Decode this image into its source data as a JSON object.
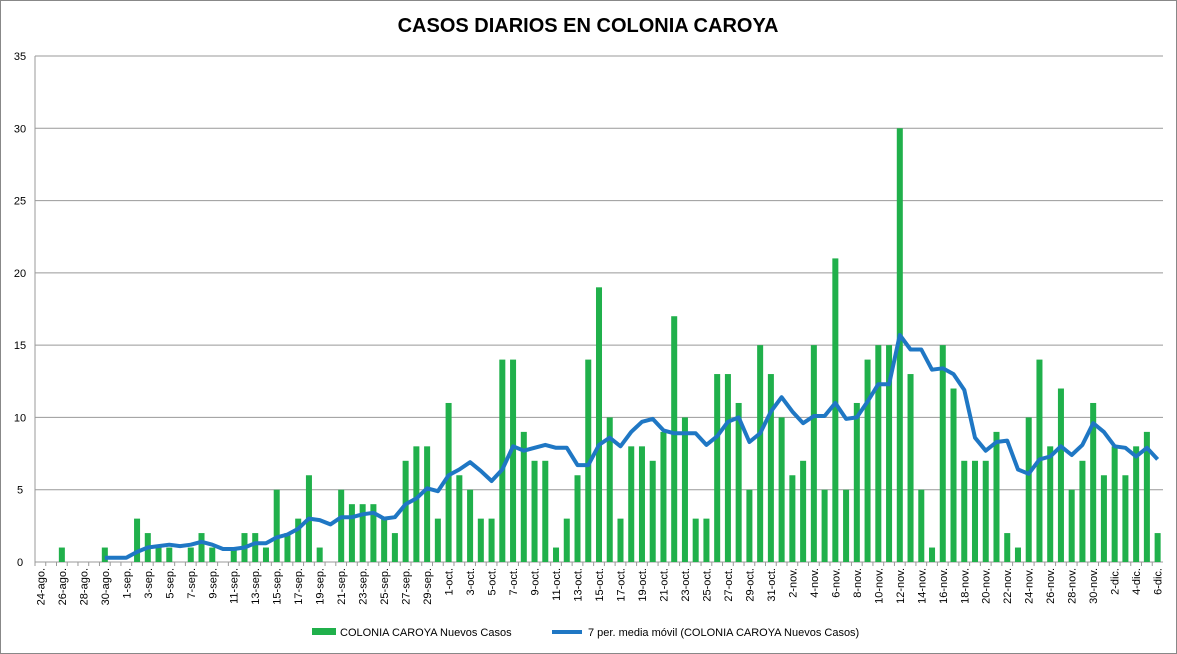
{
  "chart_data": {
    "type": "bar_line",
    "title": "CASOS DIARIOS EN COLONIA CAROYA",
    "categories": [
      "24-ago.",
      null,
      "26-ago.",
      null,
      "28-ago.",
      null,
      "30-ago.",
      null,
      "1-sep.",
      null,
      "3-sep.",
      null,
      "5-sep.",
      null,
      "7-sep.",
      null,
      "9-sep.",
      null,
      "11-sep.",
      null,
      "13-sep.",
      null,
      "15-sep.",
      null,
      "17-sep.",
      null,
      "19-sep.",
      null,
      "21-sep.",
      null,
      "23-sep.",
      null,
      "25-sep.",
      null,
      "27-sep.",
      null,
      "29-sep.",
      null,
      "1-oct.",
      null,
      "3-oct.",
      null,
      "5-oct.",
      null,
      "7-oct.",
      null,
      "9-oct.",
      null,
      "11-oct.",
      null,
      "13-oct.",
      null,
      "15-oct.",
      null,
      "17-oct.",
      null,
      "19-oct.",
      null,
      "21-oct.",
      null,
      "23-oct.",
      null,
      "25-oct.",
      null,
      "27-oct.",
      null,
      "29-oct.",
      null,
      "31-oct.",
      null,
      "2-nov.",
      null,
      "4-nov.",
      null,
      "6-nov.",
      null,
      "8-nov.",
      null,
      "10-nov.",
      null,
      "12-nov.",
      null,
      "14-nov.",
      null,
      "16-nov.",
      null,
      "18-nov.",
      null,
      "20-nov.",
      null,
      "22-nov.",
      null,
      "24-nov.",
      null,
      "26-nov.",
      null,
      "28-nov.",
      null,
      "30-nov.",
      null,
      "2-dic.",
      null,
      "4-dic.",
      null,
      "6-dic."
    ],
    "series": [
      {
        "name": "COLONIA CAROYA Nuevos Casos",
        "type": "bar",
        "color": "#20b04b",
        "values": [
          0,
          0,
          1,
          0,
          0,
          0,
          1,
          0,
          0,
          3,
          2,
          1,
          1,
          0,
          1,
          2,
          1,
          0,
          1,
          2,
          2,
          1,
          5,
          2,
          3,
          6,
          1,
          0,
          5,
          4,
          4,
          4,
          3,
          2,
          7,
          8,
          8,
          3,
          11,
          6,
          5,
          3,
          3,
          14,
          14,
          9,
          7,
          7,
          1,
          3,
          6,
          14,
          19,
          10,
          3,
          8,
          8,
          7,
          9,
          17,
          10,
          3,
          3,
          13,
          13,
          11,
          5,
          15,
          13,
          10,
          6,
          7,
          15,
          5,
          21,
          5,
          11,
          14,
          15,
          15,
          30,
          13,
          5,
          1,
          15,
          12,
          7,
          7,
          7,
          9,
          2,
          1,
          10,
          14,
          8,
          12,
          5,
          7,
          11,
          6,
          8,
          6,
          8,
          9,
          2
        ]
      },
      {
        "name": "7 per. media móvil (COLONIA CAROYA Nuevos Casos)",
        "type": "line",
        "color": "#1f77c4",
        "values": [
          null,
          null,
          null,
          null,
          null,
          null,
          0.3,
          0.3,
          0.3,
          0.7,
          1.0,
          1.1,
          1.2,
          1.1,
          1.2,
          1.4,
          1.2,
          0.9,
          0.9,
          1.0,
          1.3,
          1.3,
          1.7,
          1.9,
          2.3,
          3.0,
          2.9,
          2.6,
          3.1,
          3.1,
          3.3,
          3.4,
          3.0,
          3.1,
          4.0,
          4.4,
          5.1,
          4.9,
          6.0,
          6.4,
          6.9,
          6.3,
          5.6,
          6.4,
          8.0,
          7.7,
          7.9,
          8.1,
          7.9,
          7.9,
          6.7,
          6.7,
          8.1,
          8.6,
          8.0,
          9.0,
          9.7,
          9.9,
          9.1,
          8.9,
          8.9,
          8.9,
          8.1,
          8.7,
          9.7,
          10.0,
          8.3,
          8.9,
          10.4,
          11.4,
          10.4,
          9.6,
          10.1,
          10.1,
          11.0,
          9.9,
          10.0,
          11.1,
          12.3,
          12.3,
          15.7,
          14.7,
          14.7,
          13.3,
          13.4,
          13.0,
          11.9,
          8.6,
          7.7,
          8.3,
          8.4,
          6.4,
          6.1,
          7.1,
          7.3,
          8.0,
          7.4,
          8.1,
          9.6,
          9.0,
          8.0,
          7.9,
          7.3,
          7.9,
          7.1
        ]
      }
    ],
    "ylim": [
      0,
      35
    ],
    "yticks": [
      0,
      5,
      10,
      15,
      20,
      25,
      30,
      35
    ],
    "grid": true,
    "legend": "bottom"
  }
}
